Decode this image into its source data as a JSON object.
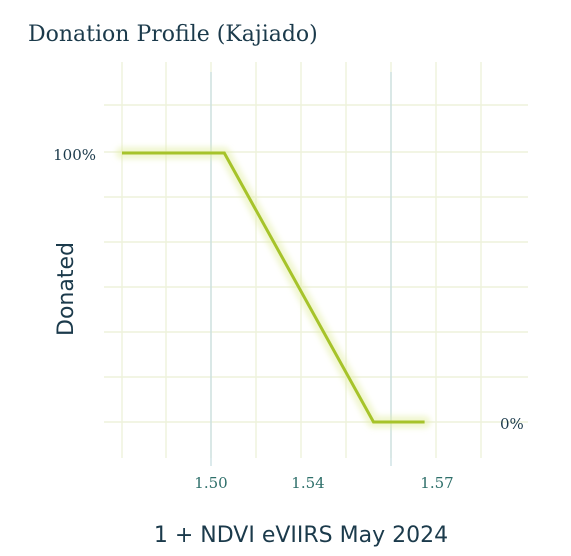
{
  "chart_data": {
    "type": "line",
    "title": "Donation Profile (Kajiado)",
    "xlabel": "1 + NDVI eVIIRS May 2024",
    "ylabel": "Donated",
    "x_ticks": [
      "1.50",
      "1.54",
      "1.57"
    ],
    "y_ticks": [
      "100%",
      "0%"
    ],
    "xlim": [
      1.452,
      1.62
    ],
    "ylim": [
      0,
      100
    ],
    "grid": true,
    "series": [
      {
        "x": [
          1.452,
          1.5,
          1.57,
          1.594
        ],
        "y": [
          100,
          100,
          0,
          0
        ]
      }
    ],
    "colors": {
      "line": "#a6c32a",
      "glow": "#e3efa6",
      "grid": "#eef2dc",
      "threshold": "#c5dde0",
      "title": "#1b3a4b",
      "x_tick_text": "#2e6f6a"
    }
  }
}
